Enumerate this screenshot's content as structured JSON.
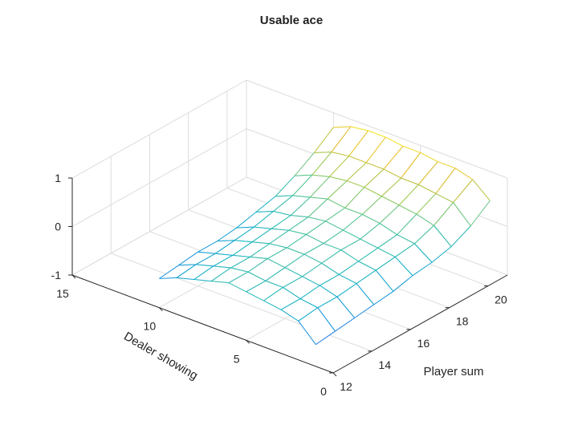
{
  "figure": {
    "background": "#ffffff"
  },
  "chart_data": {
    "type": "surface",
    "title": "Usable ace",
    "xlabel": "Player sum",
    "ylabel": "Dealer showing",
    "zlabel": "",
    "colormap": "parula",
    "xlim": [
      12,
      21
    ],
    "ylim": [
      0,
      15
    ],
    "zlim": [
      -1,
      1
    ],
    "xticks": [
      12,
      14,
      16,
      18,
      20
    ],
    "yticks": [
      0,
      5,
      10,
      15
    ],
    "zticks": [
      -1,
      0,
      1
    ],
    "x": [
      12,
      13,
      14,
      15,
      16,
      17,
      18,
      19,
      20,
      21
    ],
    "y": [
      1,
      2,
      3,
      4,
      5,
      6,
      7,
      8,
      9,
      10
    ],
    "z_rows_by_dealer": [
      [
        -0.55,
        -0.5,
        -0.45,
        -0.4,
        -0.35,
        -0.25,
        -0.2,
        -0.1,
        0.1,
        0.4
      ],
      [
        -0.2,
        -0.15,
        -0.15,
        -0.1,
        -0.05,
        0.0,
        0.05,
        0.2,
        0.45,
        0.7
      ],
      [
        -0.1,
        -0.1,
        -0.05,
        -0.05,
        0.0,
        0.05,
        0.1,
        0.3,
        0.5,
        0.8
      ],
      [
        -0.05,
        0.0,
        0.0,
        0.05,
        0.1,
        0.1,
        0.2,
        0.35,
        0.55,
        0.8
      ],
      [
        0.0,
        0.0,
        0.05,
        0.1,
        0.1,
        0.15,
        0.25,
        0.4,
        0.55,
        0.85
      ],
      [
        0.05,
        0.05,
        0.1,
        0.1,
        0.15,
        0.2,
        0.25,
        0.45,
        0.6,
        0.85
      ],
      [
        -0.05,
        0.0,
        0.0,
        0.05,
        0.1,
        0.15,
        0.3,
        0.45,
        0.6,
        0.9
      ],
      [
        -0.15,
        -0.1,
        -0.1,
        -0.05,
        0.0,
        0.05,
        0.2,
        0.4,
        0.6,
        0.9
      ],
      [
        -0.25,
        -0.2,
        -0.2,
        -0.15,
        -0.1,
        0.0,
        0.1,
        0.3,
        0.55,
        0.85
      ],
      [
        -0.4,
        -0.35,
        -0.3,
        -0.3,
        -0.25,
        -0.15,
        -0.05,
        0.15,
        0.4,
        0.7
      ]
    ],
    "grid": true,
    "legend": "none"
  }
}
